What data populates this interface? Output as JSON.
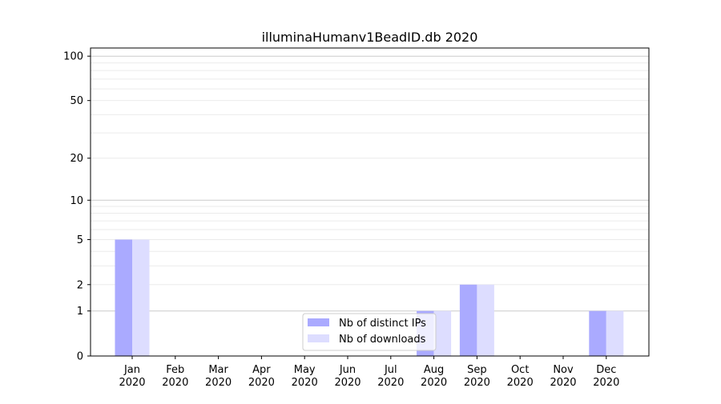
{
  "chart_data": {
    "type": "bar",
    "title": "illuminaHuman v1BeadID.db 2020",
    "categories": [
      "Jan\n2020",
      "Feb\n2020",
      "Mar\n2020",
      "Apr\n2020",
      "May\n2020",
      "Jun\n2020",
      "Jul\n2020",
      "Aug\n2020",
      "Sep\n2020",
      "Oct\n2020",
      "Nov\n2020",
      "Dec\n2020"
    ],
    "series": [
      {
        "name": "Nb of distinct IPs",
        "color": "#aaaaff",
        "values": [
          5,
          0,
          0,
          0,
          0,
          0,
          0,
          1,
          2,
          0,
          0,
          1
        ]
      },
      {
        "name": "Nb of downloads",
        "color": "#ddddff",
        "values": [
          5,
          0,
          0,
          0,
          0,
          0,
          0,
          1,
          2,
          0,
          0,
          1
        ]
      }
    ],
    "yscale": "log(1+y)",
    "yticks": [
      0,
      1,
      2,
      5,
      10,
      20,
      50,
      100
    ],
    "ylim": [
      0,
      113
    ],
    "grid": true,
    "legend": "bottom-center"
  }
}
